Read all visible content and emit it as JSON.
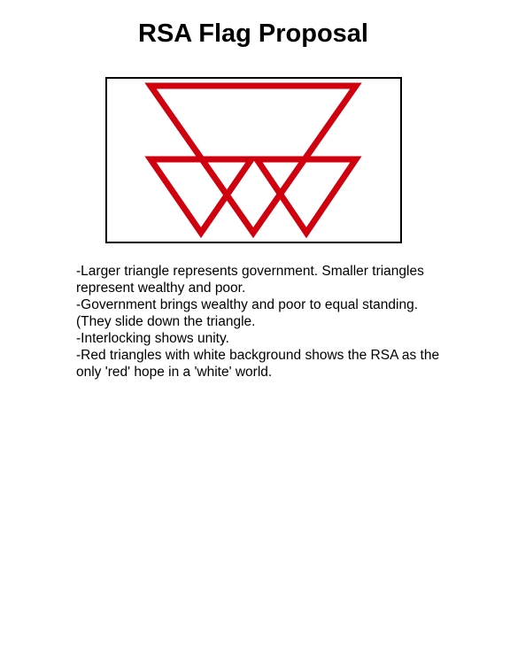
{
  "title": "RSA Flag Proposal",
  "colors": {
    "triangle_red": "#d0000e",
    "flag_background": "#ffffff",
    "flag_border": "#000000"
  },
  "notes": [
    "-Larger triangle represents government. Smaller triangles represent wealthy and poor.",
    "-Government brings wealthy and poor to equal standing. (They slide down the triangle.",
    "-Interlocking shows unity.",
    "-Red triangles with white background shows the RSA as the only 'red' hope in a 'white' world."
  ]
}
